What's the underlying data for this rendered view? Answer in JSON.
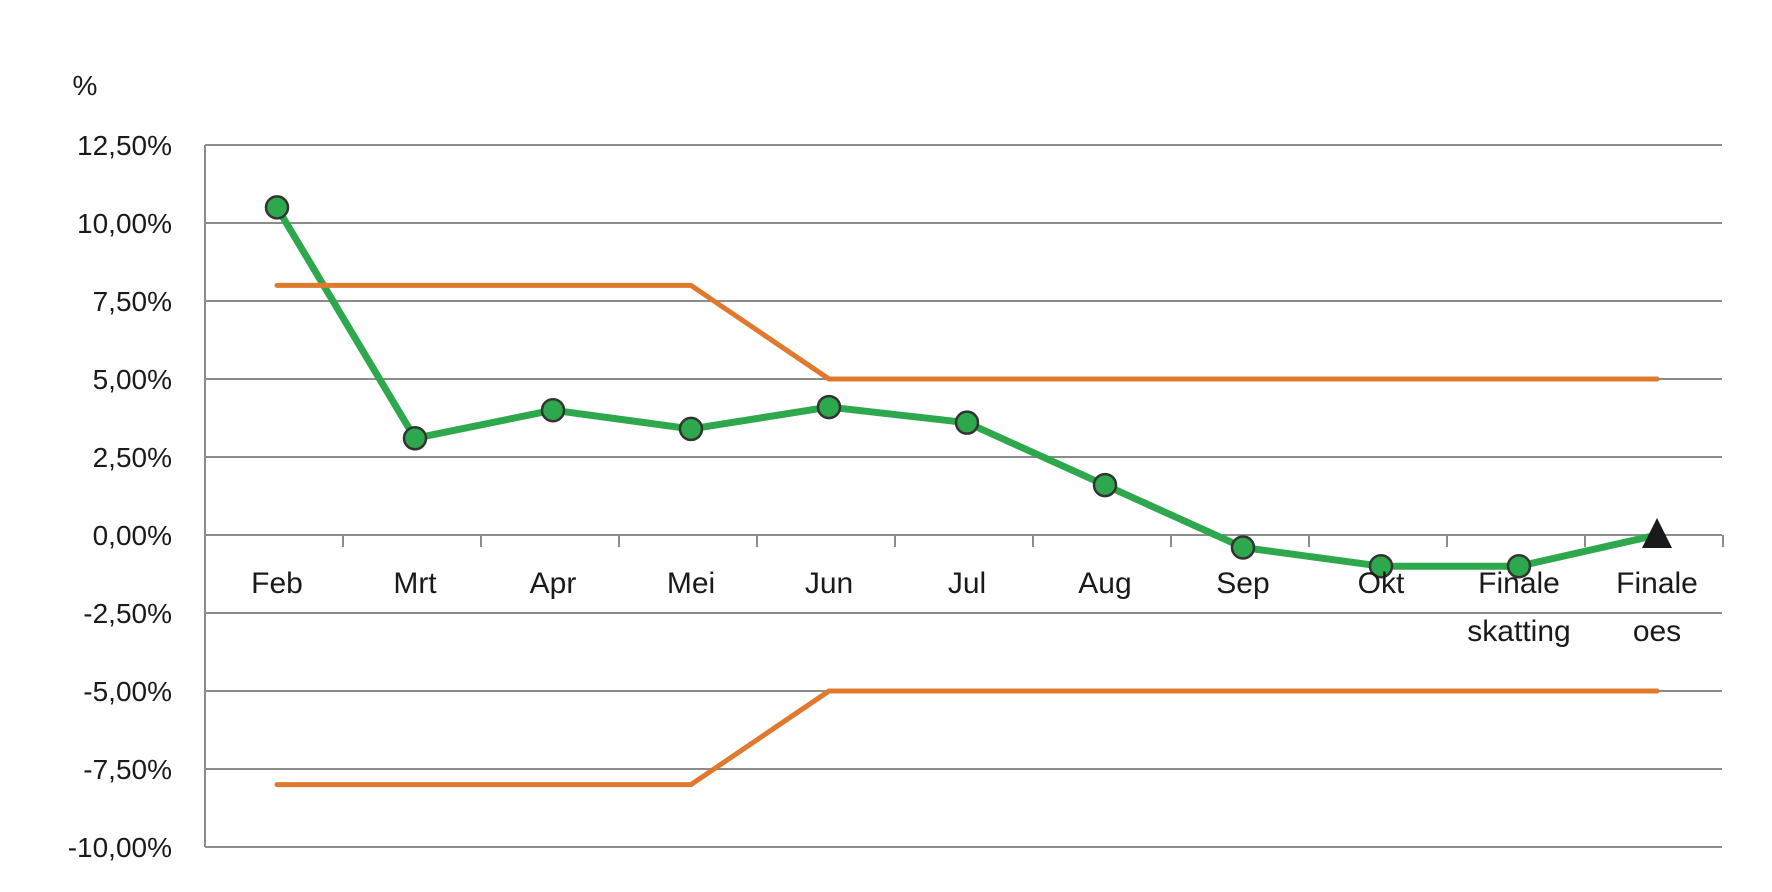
{
  "chart_data": {
    "type": "line",
    "ylabel": "%",
    "categories": [
      "Feb",
      "Mrt",
      "Apr",
      "Mei",
      "Jun",
      "Jul",
      "Aug",
      "Sep",
      "Okt",
      "Finale skatting",
      "Finale oes"
    ],
    "category_lines": [
      [
        "Feb"
      ],
      [
        "Mrt"
      ],
      [
        "Apr"
      ],
      [
        "Mei"
      ],
      [
        "Jun"
      ],
      [
        "Jul"
      ],
      [
        "Aug"
      ],
      [
        "Sep"
      ],
      [
        "Okt"
      ],
      [
        "Finale",
        "skatting"
      ],
      [
        "Finale",
        "oes"
      ]
    ],
    "ylim": [
      -10,
      12.5
    ],
    "yticks": [
      12.5,
      10,
      7.5,
      5,
      2.5,
      0,
      -2.5,
      -5,
      -7.5,
      -10
    ],
    "ytick_labels": [
      "12,50%",
      "10,00%",
      "7,50%",
      "5,00%",
      "2,50%",
      "0,00%",
      "-2,50%",
      "-5,00%",
      "-7,50%",
      "-10,00%"
    ],
    "grid": "horizontal",
    "series": [
      {
        "color": "#2ea84d",
        "marker": "circle",
        "values": [
          10.5,
          3.1,
          4.0,
          3.4,
          4.1,
          3.6,
          1.6,
          -0.4,
          -1.0,
          -1.0,
          null
        ],
        "final_marker": {
          "category": "Finale oes",
          "value": 0.0,
          "shape": "triangle",
          "color": "#1a1a1a"
        }
      },
      {
        "color": "#e0782d",
        "marker": "none",
        "values": [
          8,
          8,
          8,
          8,
          5,
          5,
          5,
          5,
          5,
          5,
          5
        ]
      },
      {
        "color": "#e0782d",
        "marker": "none",
        "values": [
          -8,
          -8,
          -8,
          -8,
          -5,
          -5,
          -5,
          -5,
          -5,
          -5,
          -5
        ]
      }
    ],
    "gridline_color": "#8c8c8c",
    "axis_color": "#8c8c8c"
  }
}
